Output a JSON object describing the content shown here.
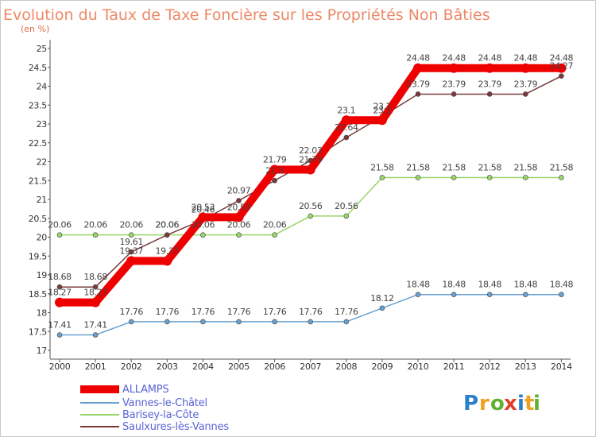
{
  "chart_data": {
    "type": "line",
    "title": "Evolution du Taux de Taxe Foncière sur les Propriétés Non Bâties",
    "subtitle": "(en %)",
    "xlabel": "",
    "ylabel": "",
    "x": [
      "2000",
      "2001",
      "2002",
      "2003",
      "2004",
      "2005",
      "2006",
      "2007",
      "2008",
      "2009",
      "2010",
      "2011",
      "2012",
      "2013",
      "2014"
    ],
    "y_ticks": [
      "17",
      "17.5",
      "18",
      "18.5",
      "19",
      "19.5",
      "20",
      "20.5",
      "21",
      "21.5",
      "22",
      "22.5",
      "23",
      "23.5",
      "24",
      "24.5",
      "25"
    ],
    "ylim": [
      17,
      25
    ],
    "grid": false,
    "legend_position": "bottom-left",
    "series": [
      {
        "name": "ALLAMPS",
        "color": "#ee0000",
        "values": [
          18.27,
          18.27,
          19.37,
          19.37,
          20.53,
          20.53,
          21.79,
          21.79,
          23.1,
          23.1,
          24.48,
          24.48,
          24.48,
          24.48,
          24.48
        ],
        "labels": [
          "18.27",
          "18.27",
          "19.37",
          "19.37",
          "20.53",
          "20.53",
          "21.79",
          "21.79",
          "23.1",
          "23.1",
          "24.48",
          "24.48",
          "24.48",
          "24.48",
          "24.48"
        ]
      },
      {
        "name": "Vannes-le-Châtel",
        "color": "#6aa0d0",
        "values": [
          17.41,
          17.41,
          17.76,
          17.76,
          17.76,
          17.76,
          17.76,
          17.76,
          17.76,
          18.12,
          18.48,
          18.48,
          18.48,
          18.48,
          18.48
        ],
        "labels": [
          "17.41",
          "17.41",
          "17.76",
          "17.76",
          "17.76",
          "17.76",
          "17.76",
          "17.76",
          "17.76",
          "18.12",
          "18.48",
          "18.48",
          "18.48",
          "18.48",
          "18.48"
        ]
      },
      {
        "name": "Barisey-la-Côte",
        "color": "#99d66a",
        "values": [
          20.06,
          20.06,
          20.06,
          20.06,
          20.06,
          20.06,
          20.06,
          20.56,
          20.56,
          21.58,
          21.58,
          21.58,
          21.58,
          21.58,
          21.58
        ],
        "labels": [
          "20.06",
          "20.06",
          "20.06",
          "20.06",
          "20.06",
          "20.06",
          "20.06",
          "20.56",
          "20.56",
          "21.58",
          "21.58",
          "21.58",
          "21.58",
          "21.58",
          "21.58"
        ]
      },
      {
        "name": "Saulxures-lès-Vannes",
        "color": "#7a3a3a",
        "values": [
          18.68,
          18.68,
          19.61,
          20.06,
          20.46,
          20.97,
          21.5,
          22.03,
          22.64,
          23.2,
          23.79,
          23.79,
          23.79,
          23.79,
          24.27
        ],
        "labels": [
          "18.68",
          "18.68",
          "19.61",
          "20.06",
          "20.46",
          "20.97",
          "21.5",
          "22.03",
          "22.64",
          "23.2",
          "23.79",
          "23.79",
          "23.79",
          "23.79",
          "24.27"
        ]
      }
    ]
  },
  "logo": {
    "letters": [
      "P",
      "r",
      "o",
      "x",
      "i",
      "t",
      "i"
    ],
    "colors": [
      "#2c7fc9",
      "#f0a020",
      "#62b032",
      "#e04030",
      "#2c7fc9",
      "#f0a020",
      "#62b032"
    ]
  }
}
